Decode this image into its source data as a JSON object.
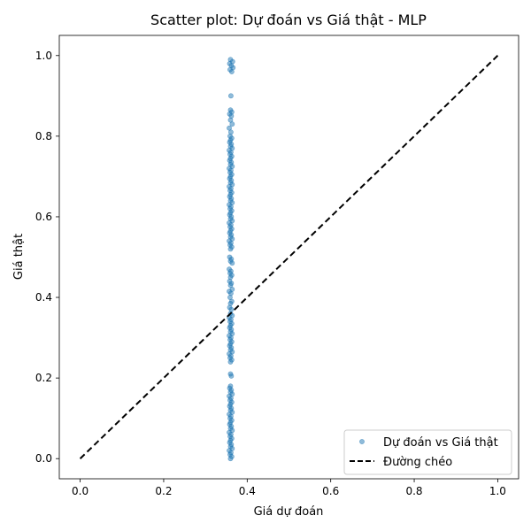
{
  "chart_data": {
    "type": "scatter",
    "title": "Scatter plot: Dự đoán vs Giá thật - MLP",
    "xlabel": "Giá dự đoán",
    "ylabel": "Giá thật",
    "xlim": [
      -0.05,
      1.05
    ],
    "ylim": [
      -0.05,
      1.05
    ],
    "xticks": [
      "0.0",
      "0.2",
      "0.4",
      "0.6",
      "0.8",
      "1.0"
    ],
    "yticks": [
      "0.0",
      "0.2",
      "0.4",
      "0.6",
      "0.8",
      "1.0"
    ],
    "grid": false,
    "legend_position": "lower right",
    "series": [
      {
        "name": "Dự đoán vs Giá thật",
        "kind": "scatter",
        "color": "#1f77b4",
        "points": [
          [
            0.36,
            0.99
          ],
          [
            0.365,
            0.985
          ],
          [
            0.358,
            0.98
          ],
          [
            0.362,
            0.975
          ],
          [
            0.366,
            0.97
          ],
          [
            0.359,
            0.965
          ],
          [
            0.363,
            0.96
          ],
          [
            0.361,
            0.9
          ],
          [
            0.36,
            0.865
          ],
          [
            0.363,
            0.86
          ],
          [
            0.358,
            0.855
          ],
          [
            0.362,
            0.85
          ],
          [
            0.36,
            0.84
          ],
          [
            0.364,
            0.83
          ],
          [
            0.357,
            0.82
          ],
          [
            0.361,
            0.81
          ],
          [
            0.359,
            0.8
          ],
          [
            0.363,
            0.795
          ],
          [
            0.36,
            0.79
          ],
          [
            0.358,
            0.785
          ],
          [
            0.362,
            0.78
          ],
          [
            0.36,
            0.775
          ],
          [
            0.364,
            0.77
          ],
          [
            0.357,
            0.765
          ],
          [
            0.361,
            0.76
          ],
          [
            0.359,
            0.755
          ],
          [
            0.363,
            0.75
          ],
          [
            0.36,
            0.745
          ],
          [
            0.358,
            0.74
          ],
          [
            0.362,
            0.735
          ],
          [
            0.36,
            0.73
          ],
          [
            0.364,
            0.725
          ],
          [
            0.357,
            0.72
          ],
          [
            0.361,
            0.715
          ],
          [
            0.359,
            0.71
          ],
          [
            0.363,
            0.705
          ],
          [
            0.36,
            0.7
          ],
          [
            0.358,
            0.695
          ],
          [
            0.362,
            0.69
          ],
          [
            0.36,
            0.685
          ],
          [
            0.364,
            0.68
          ],
          [
            0.357,
            0.675
          ],
          [
            0.361,
            0.67
          ],
          [
            0.359,
            0.665
          ],
          [
            0.363,
            0.66
          ],
          [
            0.36,
            0.655
          ],
          [
            0.358,
            0.65
          ],
          [
            0.362,
            0.645
          ],
          [
            0.36,
            0.64
          ],
          [
            0.364,
            0.635
          ],
          [
            0.357,
            0.63
          ],
          [
            0.361,
            0.625
          ],
          [
            0.359,
            0.62
          ],
          [
            0.363,
            0.615
          ],
          [
            0.36,
            0.61
          ],
          [
            0.358,
            0.605
          ],
          [
            0.362,
            0.6
          ],
          [
            0.36,
            0.595
          ],
          [
            0.364,
            0.59
          ],
          [
            0.357,
            0.585
          ],
          [
            0.361,
            0.58
          ],
          [
            0.359,
            0.575
          ],
          [
            0.363,
            0.57
          ],
          [
            0.36,
            0.565
          ],
          [
            0.358,
            0.56
          ],
          [
            0.362,
            0.555
          ],
          [
            0.36,
            0.55
          ],
          [
            0.364,
            0.545
          ],
          [
            0.357,
            0.54
          ],
          [
            0.361,
            0.535
          ],
          [
            0.359,
            0.53
          ],
          [
            0.363,
            0.525
          ],
          [
            0.36,
            0.52
          ],
          [
            0.358,
            0.5
          ],
          [
            0.362,
            0.495
          ],
          [
            0.36,
            0.49
          ],
          [
            0.364,
            0.485
          ],
          [
            0.357,
            0.47
          ],
          [
            0.361,
            0.465
          ],
          [
            0.359,
            0.46
          ],
          [
            0.363,
            0.455
          ],
          [
            0.36,
            0.45
          ],
          [
            0.358,
            0.44
          ],
          [
            0.362,
            0.435
          ],
          [
            0.36,
            0.43
          ],
          [
            0.364,
            0.42
          ],
          [
            0.357,
            0.415
          ],
          [
            0.361,
            0.41
          ],
          [
            0.359,
            0.4
          ],
          [
            0.363,
            0.39
          ],
          [
            0.36,
            0.385
          ],
          [
            0.358,
            0.375
          ],
          [
            0.362,
            0.37
          ],
          [
            0.36,
            0.36
          ],
          [
            0.364,
            0.355
          ],
          [
            0.357,
            0.35
          ],
          [
            0.361,
            0.345
          ],
          [
            0.359,
            0.34
          ],
          [
            0.363,
            0.335
          ],
          [
            0.36,
            0.33
          ],
          [
            0.358,
            0.325
          ],
          [
            0.362,
            0.32
          ],
          [
            0.36,
            0.315
          ],
          [
            0.364,
            0.31
          ],
          [
            0.357,
            0.305
          ],
          [
            0.361,
            0.3
          ],
          [
            0.359,
            0.295
          ],
          [
            0.363,
            0.29
          ],
          [
            0.36,
            0.285
          ],
          [
            0.358,
            0.28
          ],
          [
            0.362,
            0.275
          ],
          [
            0.36,
            0.27
          ],
          [
            0.364,
            0.265
          ],
          [
            0.357,
            0.26
          ],
          [
            0.361,
            0.255
          ],
          [
            0.359,
            0.25
          ],
          [
            0.363,
            0.245
          ],
          [
            0.36,
            0.24
          ],
          [
            0.36,
            0.21
          ],
          [
            0.362,
            0.205
          ],
          [
            0.36,
            0.18
          ],
          [
            0.358,
            0.175
          ],
          [
            0.362,
            0.17
          ],
          [
            0.36,
            0.165
          ],
          [
            0.364,
            0.16
          ],
          [
            0.357,
            0.155
          ],
          [
            0.361,
            0.15
          ],
          [
            0.359,
            0.145
          ],
          [
            0.363,
            0.14
          ],
          [
            0.36,
            0.135
          ],
          [
            0.358,
            0.13
          ],
          [
            0.362,
            0.125
          ],
          [
            0.36,
            0.12
          ],
          [
            0.364,
            0.115
          ],
          [
            0.357,
            0.11
          ],
          [
            0.361,
            0.105
          ],
          [
            0.359,
            0.1
          ],
          [
            0.363,
            0.095
          ],
          [
            0.36,
            0.09
          ],
          [
            0.358,
            0.085
          ],
          [
            0.362,
            0.08
          ],
          [
            0.36,
            0.075
          ],
          [
            0.364,
            0.07
          ],
          [
            0.357,
            0.065
          ],
          [
            0.361,
            0.06
          ],
          [
            0.359,
            0.055
          ],
          [
            0.363,
            0.05
          ],
          [
            0.36,
            0.045
          ],
          [
            0.358,
            0.04
          ],
          [
            0.362,
            0.035
          ],
          [
            0.36,
            0.03
          ],
          [
            0.364,
            0.025
          ],
          [
            0.357,
            0.02
          ],
          [
            0.361,
            0.015
          ],
          [
            0.359,
            0.01
          ],
          [
            0.363,
            0.005
          ],
          [
            0.36,
            0.0
          ]
        ]
      },
      {
        "name": "Đường chéo",
        "kind": "line",
        "color": "#000000",
        "dash": "dashed",
        "points": [
          [
            0.0,
            0.0
          ],
          [
            1.0,
            1.0
          ]
        ]
      }
    ]
  }
}
